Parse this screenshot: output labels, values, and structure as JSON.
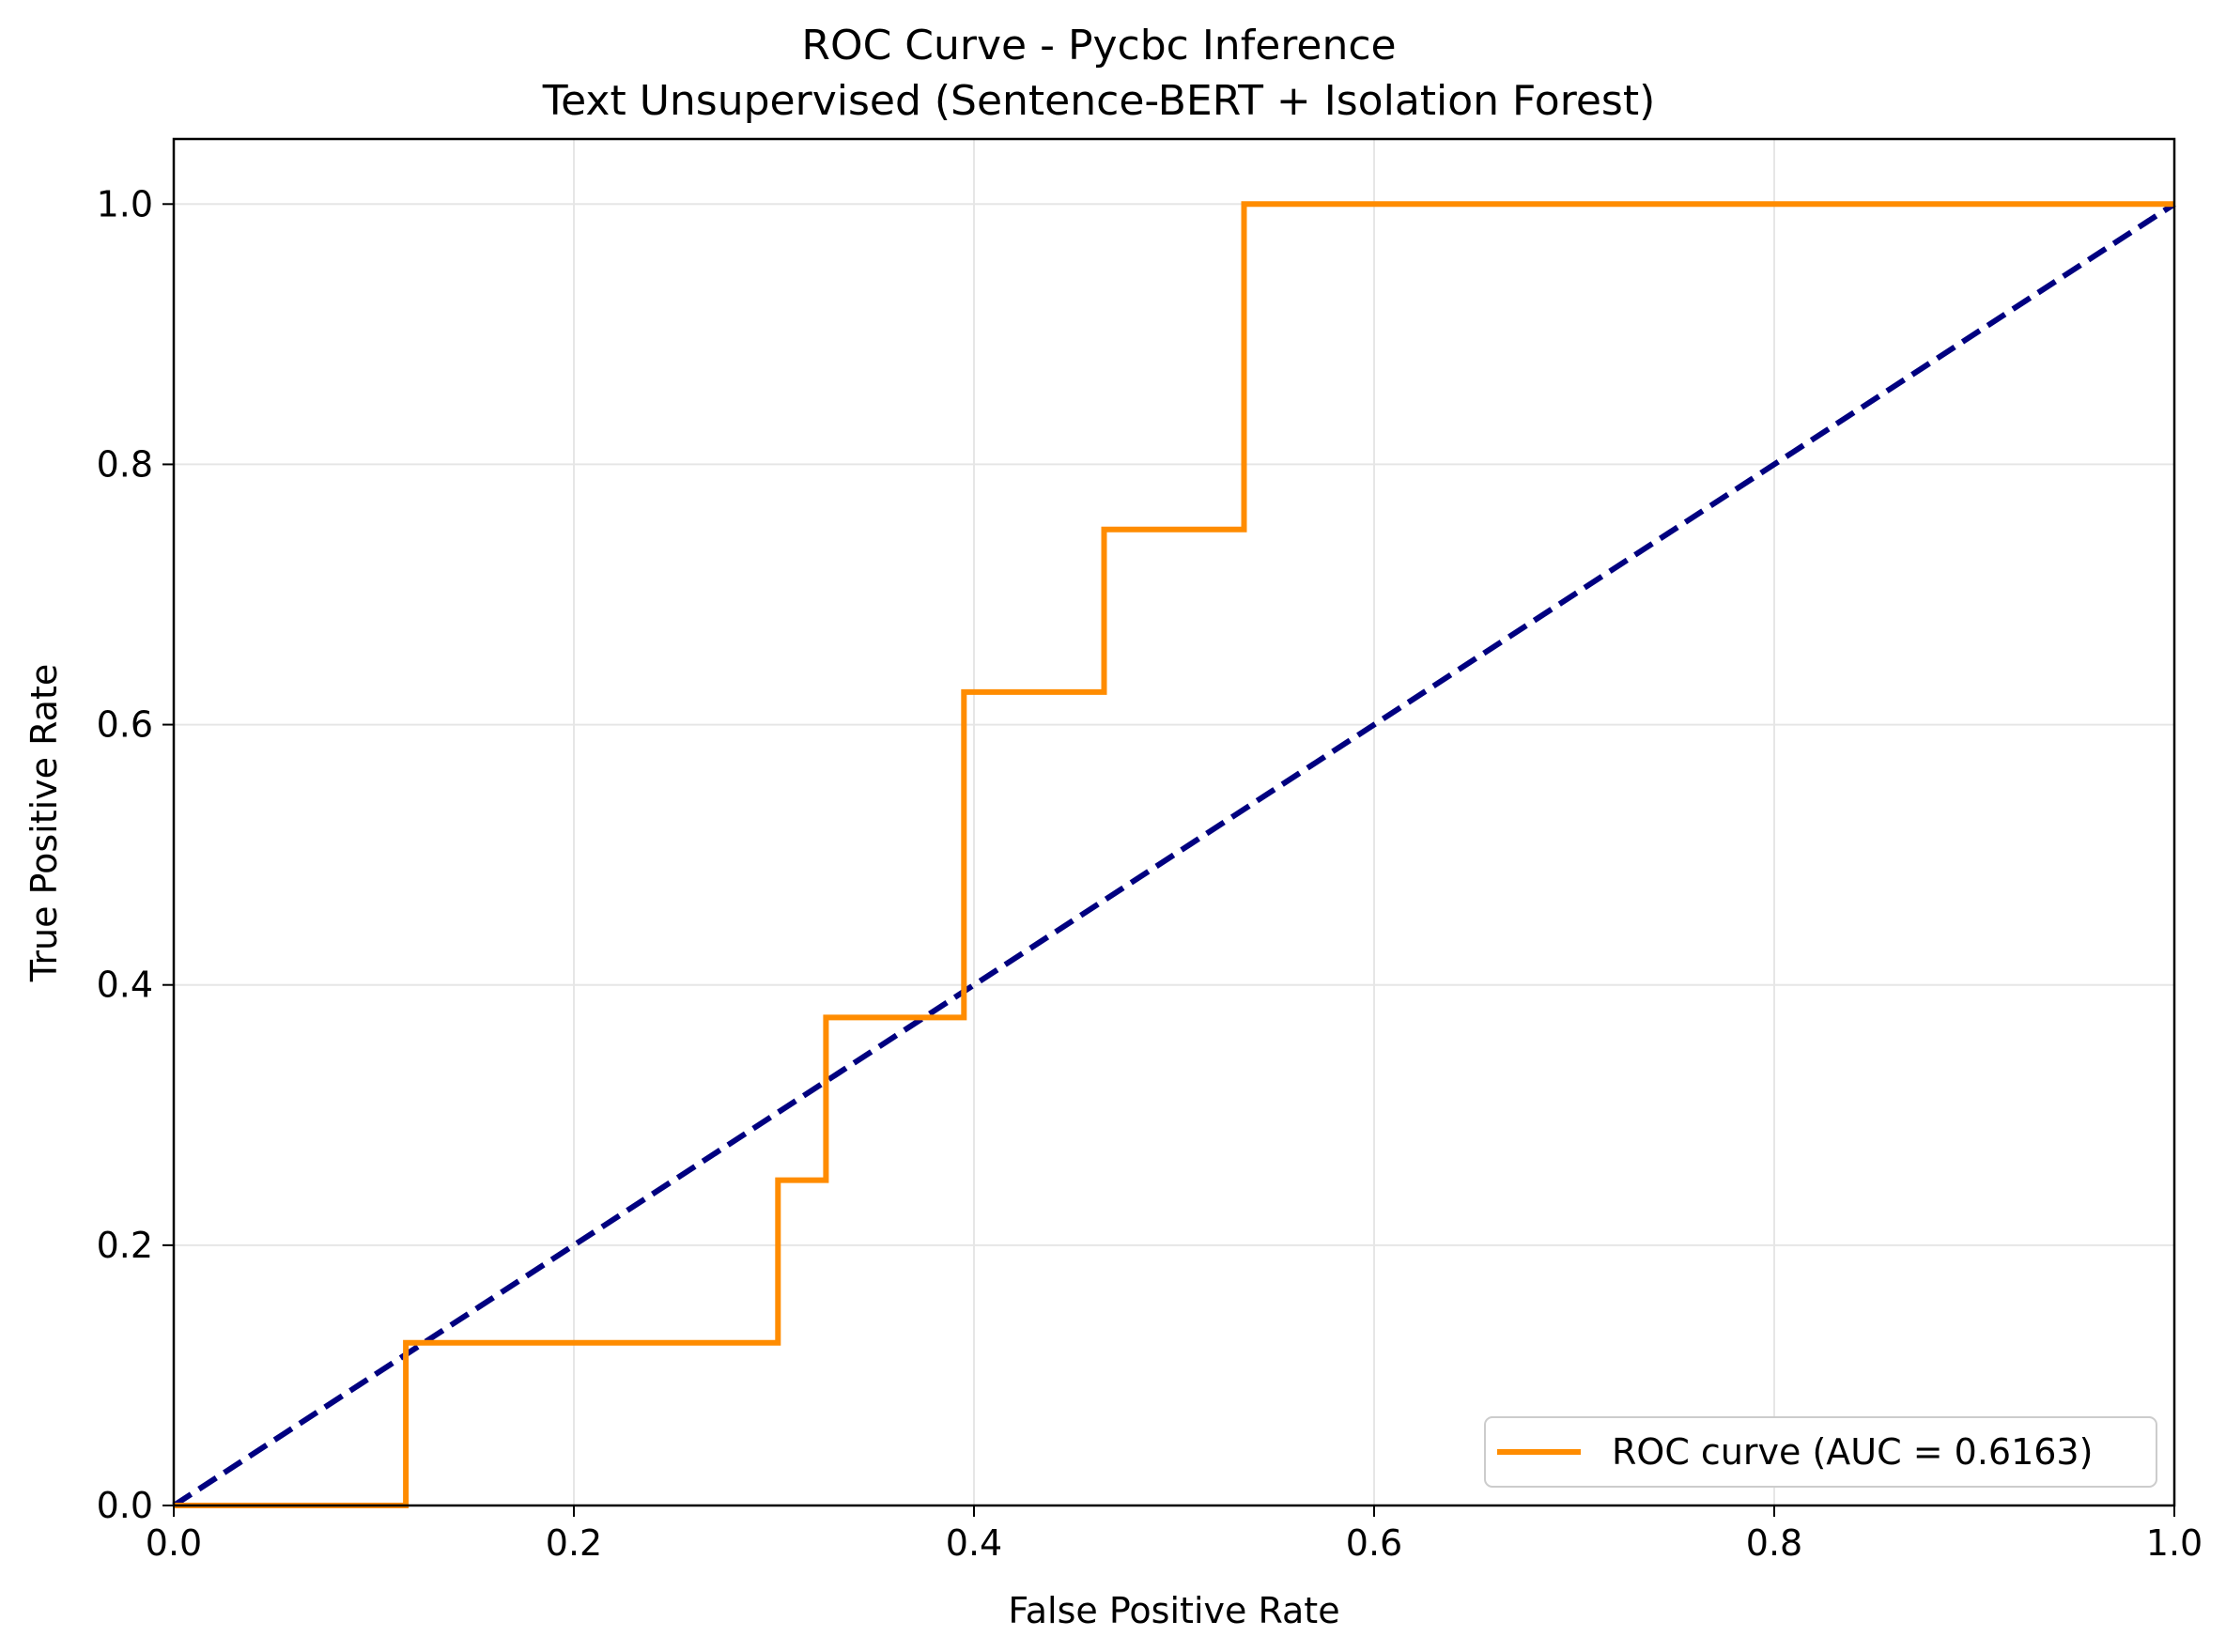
{
  "chart_data": {
    "type": "line",
    "title": "ROC Curve - Pycbc Inference",
    "subtitle": "Text Unsupervised (Sentence-BERT + Isolation Forest)",
    "xlabel": "False Positive Rate",
    "ylabel": "True Positive Rate",
    "xlim": [
      0.0,
      1.0
    ],
    "ylim": [
      0.0,
      1.05
    ],
    "xticks": [
      "0.0",
      "0.2",
      "0.4",
      "0.6",
      "0.8",
      "1.0"
    ],
    "yticks": [
      "0.0",
      "0.2",
      "0.4",
      "0.6",
      "0.8",
      "1.0"
    ],
    "grid": true,
    "legend_position": "lower-right",
    "series": [
      {
        "name": "ROC curve (AUC = 0.6163)",
        "color": "#ff8c00",
        "style": "solid",
        "x": [
          0.0,
          0.116,
          0.116,
          0.302,
          0.302,
          0.326,
          0.326,
          0.395,
          0.395,
          0.465,
          0.465,
          0.535,
          0.535,
          1.0
        ],
        "y": [
          0.0,
          0.0,
          0.125,
          0.125,
          0.25,
          0.25,
          0.375,
          0.375,
          0.625,
          0.625,
          0.75,
          0.75,
          1.0,
          1.0
        ]
      },
      {
        "color": "#000080",
        "style": "dashed",
        "x": [
          0.0,
          1.0
        ],
        "y": [
          0.0,
          1.0
        ]
      }
    ]
  }
}
